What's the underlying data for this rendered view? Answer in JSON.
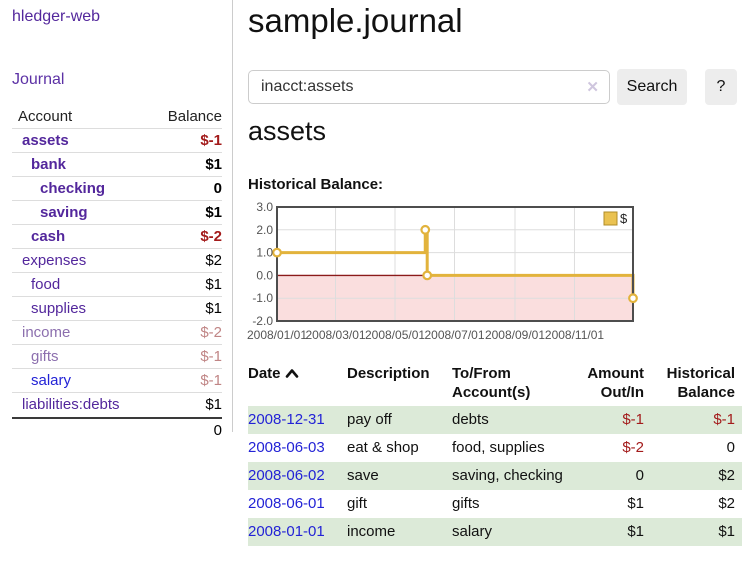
{
  "app": {
    "title": "hledger-web"
  },
  "sidebar": {
    "nav": {
      "journal_label": "Journal"
    },
    "headers": {
      "account": "Account",
      "balance": "Balance"
    },
    "accounts": [
      {
        "name": "assets",
        "balance": "$-1"
      },
      {
        "name": "bank",
        "balance": "$1"
      },
      {
        "name": "checking",
        "balance": "0"
      },
      {
        "name": "saving",
        "balance": "$1"
      },
      {
        "name": "cash",
        "balance": "$-2"
      },
      {
        "name": "expenses",
        "balance": "$2"
      },
      {
        "name": "food",
        "balance": "$1"
      },
      {
        "name": "supplies",
        "balance": "$1"
      },
      {
        "name": "income",
        "balance": "$-2"
      },
      {
        "name": "gifts",
        "balance": "$-1"
      },
      {
        "name": "salary",
        "balance": "$-1"
      },
      {
        "name": "liabilities:debts",
        "balance": "$1"
      }
    ],
    "total": "0"
  },
  "main": {
    "title": "sample.journal",
    "search": {
      "value": "inacct:assets",
      "clear_icon": "✕",
      "button_label": "Search",
      "help_label": "?"
    },
    "account_heading": "assets",
    "chart_label": "Historical Balance:",
    "register": {
      "headers": {
        "date": "Date",
        "description": "Description",
        "tofrom": [
          "To/From",
          "Account(s)"
        ],
        "amount": [
          "Amount",
          "Out/In"
        ],
        "balance": [
          "Historical",
          "Balance"
        ]
      },
      "rows": [
        {
          "date": "2008-12-31",
          "description": "pay off",
          "accounts": "debts",
          "amount": "$-1",
          "balance": "$-1"
        },
        {
          "date": "2008-06-03",
          "description": "eat & shop",
          "accounts": "food, supplies",
          "amount": "$-2",
          "balance": "0"
        },
        {
          "date": "2008-06-02",
          "description": "save",
          "accounts": "saving, checking",
          "amount": "0",
          "balance": "$2"
        },
        {
          "date": "2008-06-01",
          "description": "gift",
          "accounts": "gifts",
          "amount": "$1",
          "balance": "$2"
        },
        {
          "date": "2008-01-01",
          "description": "income",
          "accounts": "salary",
          "amount": "$1",
          "balance": "$1"
        }
      ]
    }
  },
  "chart_data": {
    "type": "line",
    "title": "Historical Balance:",
    "step": true,
    "series": [
      {
        "name": "$",
        "points": [
          [
            "2008-01-01",
            1
          ],
          [
            "2008-06-01",
            2
          ],
          [
            "2008-06-03",
            0
          ],
          [
            "2008-12-31",
            -1
          ]
        ]
      }
    ],
    "x_range": [
      "2008-01-01",
      "2008-12-31"
    ],
    "ylim": [
      -2,
      3
    ],
    "y_ticks": [
      3.0,
      2.0,
      1.0,
      0.0,
      -1.0,
      -2.0
    ],
    "x_ticks": [
      {
        "date": "2008-01-01",
        "label": "2008/01/01"
      },
      {
        "date": "2008-03-01",
        "label": "2008/03/01"
      },
      {
        "date": "2008-05-01",
        "label": "2008/05/01"
      },
      {
        "date": "2008-07-01",
        "label": "2008/07/01"
      },
      {
        "date": "2008-09-01",
        "label": "2008/09/01"
      },
      {
        "date": "2008-11-01",
        "label": "2008/11/01"
      }
    ],
    "legend_position": "top-right",
    "grid": true,
    "line_color": "#e2b33c",
    "legend_swatch_color": "#eac251",
    "legend_swatch_border": "#b08c28",
    "zero_line_color": "#8b1a1a",
    "negative_region_color": "#fadede"
  },
  "colors": {
    "link_purple": "#53279c",
    "link_purple_dim": "#8c6fae",
    "link_blue": "#2323d6",
    "negative_red": "#a31b1b",
    "negative_red_faded": "#c08585",
    "row_green": "#dcead8",
    "chart_line_gold": "#e2b33c",
    "chart_negative_pink": "#fadede"
  }
}
